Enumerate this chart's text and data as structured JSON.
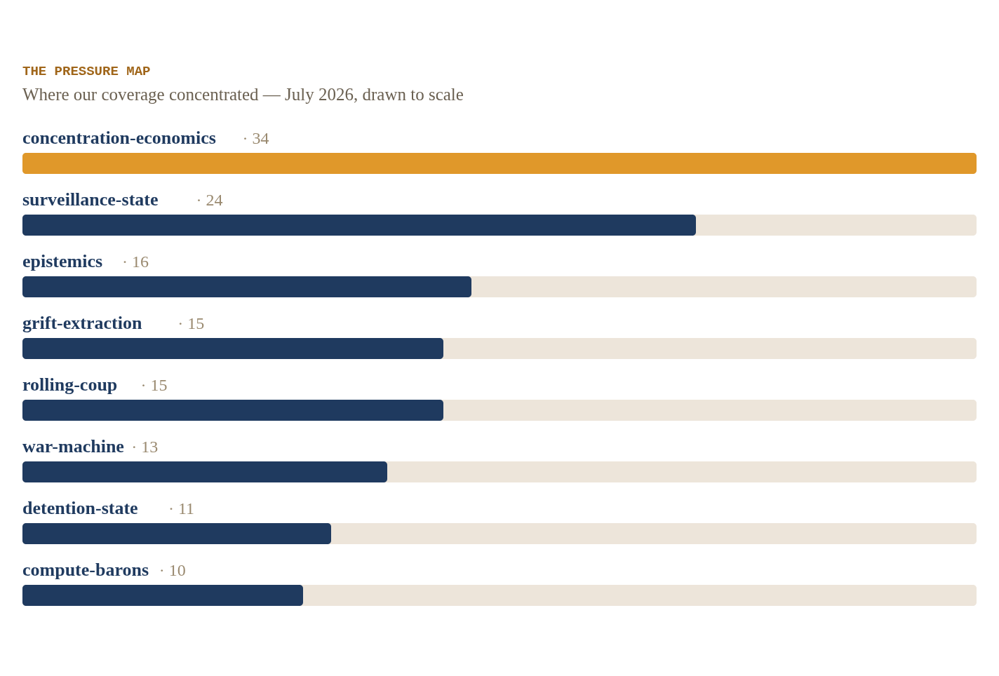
{
  "chart_data": {
    "type": "bar",
    "orientation": "horizontal",
    "title": "THE PRESSURE MAP",
    "subtitle": "Where our coverage concentrated — July 2026, drawn to scale",
    "categories": [
      "concentration-economics",
      "surveillance-state",
      "epistemics",
      "grift-extraction",
      "rolling-coup",
      "war-machine",
      "detention-state",
      "compute-barons"
    ],
    "values": [
      34,
      24,
      16,
      15,
      15,
      13,
      11,
      10
    ],
    "value_labels": [
      "· 34",
      "· 24",
      "· 16",
      "· 15",
      "· 15",
      "· 13",
      "· 11",
      "· 10"
    ],
    "colors": [
      "#e0982a",
      "#1f3a5f",
      "#1f3a5f",
      "#1f3a5f",
      "#1f3a5f",
      "#1f3a5f",
      "#1f3a5f",
      "#1f3a5f"
    ]
  }
}
